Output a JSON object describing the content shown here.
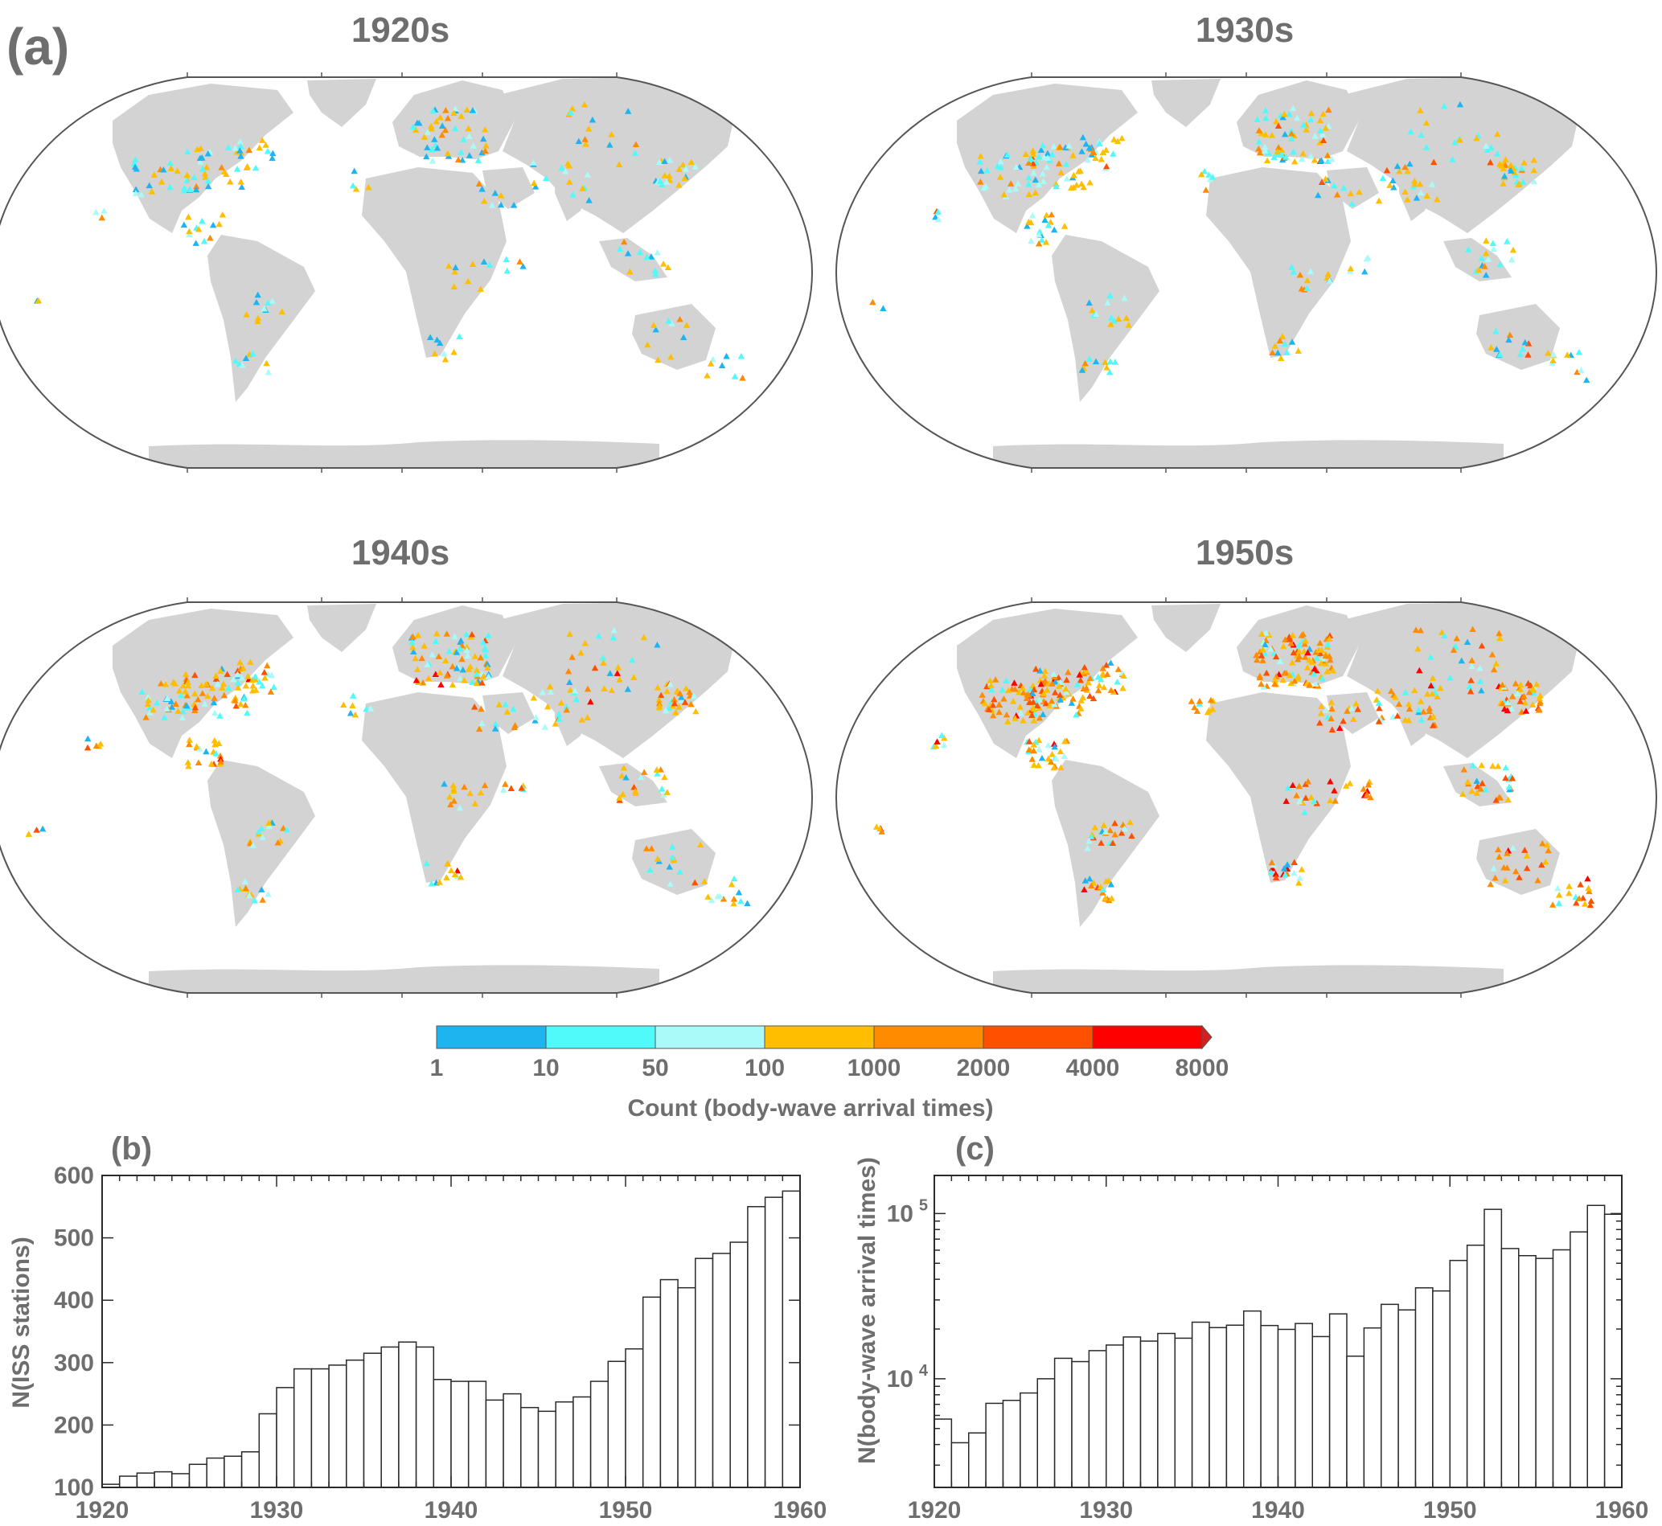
{
  "panel_labels": {
    "a": "(a)",
    "b": "(b)",
    "c": "(c)"
  },
  "colors": {
    "text": "#6e6e6e",
    "land": "#d3d3d3",
    "frame": "#555555",
    "bins": [
      "#1eb4f0",
      "#50fafa",
      "#aafafa",
      "#ffbe00",
      "#ff8c00",
      "#ff5000",
      "#ff0000"
    ],
    "extend": "#d42020"
  },
  "maps": [
    {
      "title": "1920s",
      "density": 1.0,
      "mix": [
        0.22,
        0.22,
        0.16,
        0.34,
        0.06,
        0.0,
        0.0
      ]
    },
    {
      "title": "1930s",
      "density": 1.35,
      "mix": [
        0.12,
        0.22,
        0.16,
        0.36,
        0.1,
        0.04,
        0.0
      ]
    },
    {
      "title": "1940s",
      "density": 1.5,
      "mix": [
        0.1,
        0.18,
        0.14,
        0.34,
        0.14,
        0.08,
        0.02
      ]
    },
    {
      "title": "1950s",
      "density": 2.2,
      "mix": [
        0.04,
        0.1,
        0.1,
        0.3,
        0.22,
        0.16,
        0.08
      ]
    }
  ],
  "colorbar": {
    "ticks": [
      "1",
      "10",
      "50",
      "100",
      "1000",
      "2000",
      "4000",
      "8000"
    ],
    "label": "Count (body-wave arrival times)"
  },
  "chart_data": [
    {
      "type": "bar",
      "panel": "(b)",
      "ylabel": "N(ISS stations)",
      "xlim": [
        1920,
        1960
      ],
      "ylim": [
        100,
        600
      ],
      "yticks": [
        100,
        200,
        300,
        400,
        500,
        600
      ],
      "xticks": [
        1920,
        1930,
        1940,
        1950,
        1960
      ],
      "x": [
        1920,
        1921,
        1922,
        1923,
        1924,
        1925,
        1926,
        1927,
        1928,
        1929,
        1930,
        1931,
        1932,
        1933,
        1934,
        1935,
        1936,
        1937,
        1938,
        1939,
        1940,
        1941,
        1942,
        1943,
        1944,
        1945,
        1946,
        1947,
        1948,
        1949,
        1950,
        1951,
        1952,
        1953,
        1954,
        1955,
        1956,
        1957,
        1958,
        1959
      ],
      "values": [
        105,
        118,
        123,
        125,
        122,
        137,
        147,
        150,
        157,
        218,
        260,
        290,
        290,
        296,
        304,
        315,
        325,
        333,
        325,
        273,
        270,
        270,
        240,
        250,
        228,
        222,
        237,
        245,
        270,
        302,
        322,
        405,
        433,
        420,
        467,
        475,
        493,
        550,
        565,
        575
      ]
    },
    {
      "type": "bar",
      "panel": "(c)",
      "ylabel": "N(body-wave arrival times)",
      "yscale": "log",
      "xlim": [
        1920,
        1960
      ],
      "ylim": [
        2200,
        170000
      ],
      "yticks": [
        10000,
        100000
      ],
      "ytick_labels": [
        [
          "10",
          "4"
        ],
        [
          "10",
          "5"
        ]
      ],
      "xticks": [
        1920,
        1930,
        1940,
        1950,
        1960
      ],
      "x": [
        1920,
        1921,
        1922,
        1923,
        1924,
        1925,
        1926,
        1927,
        1928,
        1929,
        1930,
        1931,
        1932,
        1933,
        1934,
        1935,
        1936,
        1937,
        1938,
        1939,
        1940,
        1941,
        1942,
        1943,
        1944,
        1945,
        1946,
        1947,
        1948,
        1949,
        1950,
        1951,
        1952,
        1953,
        1954,
        1955,
        1956,
        1957,
        1958,
        1959
      ],
      "values": [
        5700,
        4100,
        4700,
        7100,
        7400,
        8200,
        10000,
        13300,
        12700,
        14800,
        16000,
        17900,
        16900,
        18800,
        17600,
        22000,
        20400,
        21100,
        25700,
        21000,
        19900,
        21600,
        18000,
        24700,
        13700,
        20300,
        28200,
        26100,
        35500,
        34000,
        52000,
        64300,
        106000,
        61400,
        55600,
        53500,
        60300,
        77400,
        112000,
        99000
      ]
    }
  ]
}
